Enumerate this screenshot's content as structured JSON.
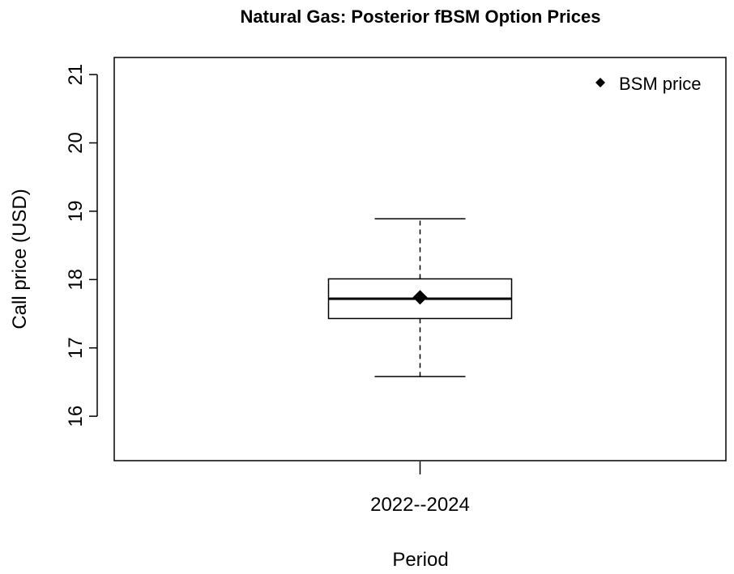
{
  "chart_data": {
    "type": "boxplot",
    "title": "Natural Gas: Posterior fBSM Option Prices",
    "xlabel": "Period",
    "ylabel": "Call price (USD)",
    "ylim": [
      15.35,
      21.25
    ],
    "yticks": [
      16,
      17,
      18,
      19,
      20,
      21
    ],
    "ytick_labels": [
      "16",
      "17",
      "18",
      "19",
      "20",
      "21"
    ],
    "categories": [
      "2022--2024"
    ],
    "boxes": [
      {
        "category": "2022--2024",
        "whisker_low": 16.58,
        "q1": 17.43,
        "median": 17.72,
        "q3": 18.01,
        "whisker_high": 18.89
      }
    ],
    "markers": [
      {
        "category": "2022--2024",
        "value": 17.74,
        "label": "BSM price"
      }
    ],
    "legend": {
      "placement": "top-right",
      "entries": [
        {
          "label": "BSM price",
          "symbol": "diamond"
        }
      ]
    },
    "grid": false
  }
}
